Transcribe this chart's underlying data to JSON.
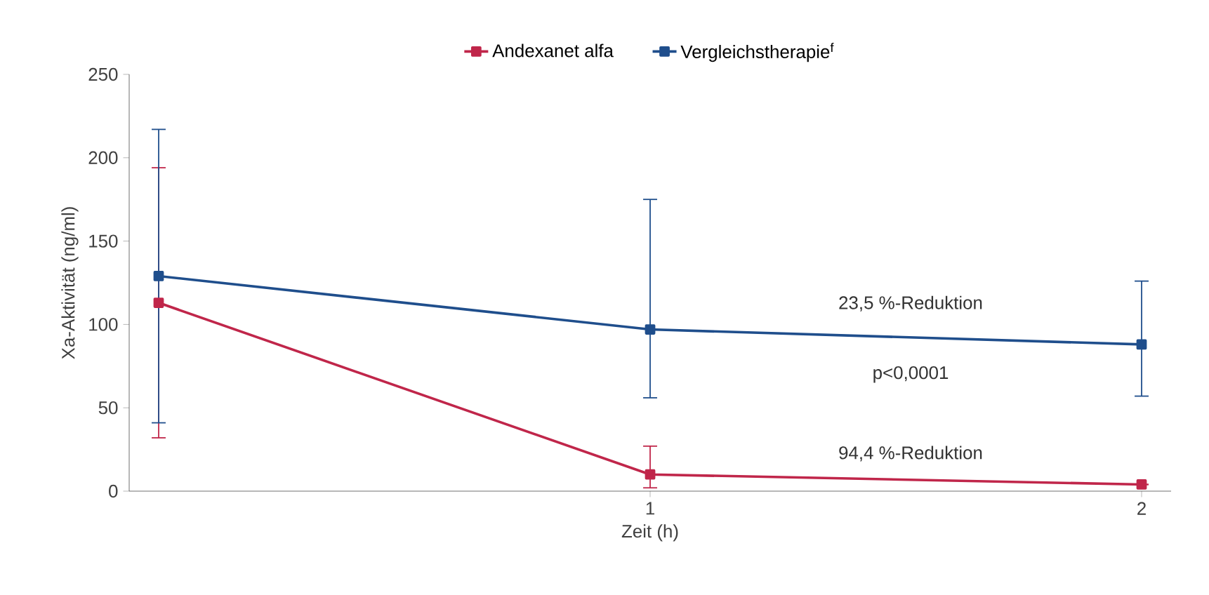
{
  "chart_data": {
    "type": "line",
    "ylabel": "Xa-Aktivität (ng/ml)",
    "xlabel": "Zeit (h)",
    "x": [
      0,
      1,
      2
    ],
    "xlim": [
      -0.06,
      2.06
    ],
    "xticks": [
      1,
      2
    ],
    "ylim": [
      0,
      250
    ],
    "yticks": [
      0,
      50,
      100,
      150,
      200,
      250
    ],
    "series": [
      {
        "name": "Andexanet alfa",
        "color": "#c0264a",
        "values": [
          113,
          10,
          4
        ],
        "errors": [
          81,
          [
            2,
            27
          ],
          null
        ]
      },
      {
        "name": "Vergleichstherapie$^{f}$",
        "color": "#1f4e8c",
        "values": [
          129,
          97,
          88
        ],
        "errors": [
          88,
          [
            56,
            175
          ],
          [
            57,
            126
          ]
        ]
      }
    ],
    "marker": "square",
    "legend": "top",
    "grid": false,
    "annotations": [
      "23,5 %-Reduktion",
      "p<0,0001",
      "94,4 %-Reduktion"
    ]
  }
}
